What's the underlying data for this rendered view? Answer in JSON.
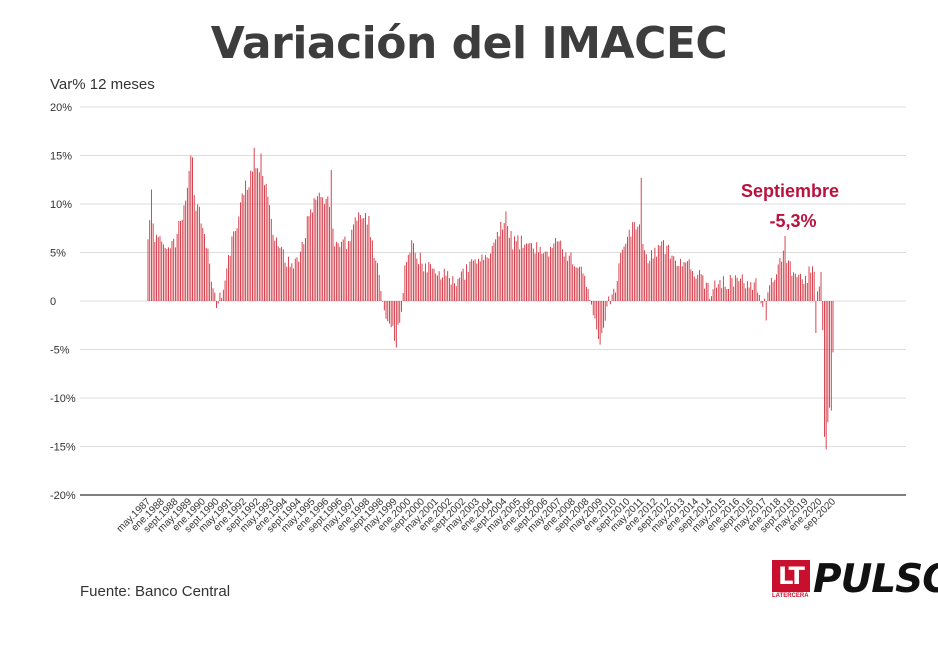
{
  "title": "Variación del IMACEC",
  "source": "Fuente: Banco Central",
  "logo": {
    "lt": "LT",
    "lt_sub": "LATERCERA",
    "pulso": "PULSO"
  },
  "colors": {
    "bar": "#d2303e",
    "annotation": "#b8123f",
    "grid": "#dddddd",
    "axis": "#555555"
  },
  "chart_data": {
    "type": "bar",
    "ylabel": "Var% 12 meses",
    "ylim": [
      -20,
      20
    ],
    "yticks": [
      20,
      15,
      10,
      5,
      0,
      -5,
      -10,
      -15,
      -20
    ],
    "ytick_labels": [
      "20%",
      "15%",
      "10%",
      "5%",
      "0",
      "-5%",
      "-10%",
      "-15%",
      "-20%"
    ],
    "grid": true,
    "x_start": "1987-05",
    "x_end": "2020-09",
    "xtick_labels": [
      "may.1987",
      "ene.1988",
      "sept.1988",
      "may.1989",
      "ene.1990",
      "sept.1990",
      "may.1991",
      "ene.1992",
      "sept.1992",
      "may.1993",
      "ene.1994",
      "sept.1994",
      "may.1995",
      "ene.1996",
      "sept.1996",
      "may.1997",
      "ene.1998",
      "sept.1998",
      "may.1999",
      "ene.2000",
      "sept.2000",
      "may.2001",
      "ene.2002",
      "sept.2002",
      "may.2003",
      "ene.2004",
      "sept.2004",
      "may.2005",
      "ene.2006",
      "sept.2006",
      "may.2007",
      "ene.2008",
      "sept.2008",
      "may.2009",
      "ene.2010",
      "sept.2010",
      "may.2011",
      "ene.2012",
      "sept.2012",
      "may.2013",
      "ene.2014",
      "sept.2014",
      "may.2015",
      "ene.2016",
      "sept.2016",
      "may.2017",
      "ene.2018",
      "sept.2018",
      "may.2019",
      "ene.2020",
      "sep.2020"
    ],
    "anchors": [
      [
        "1987-05",
        7
      ],
      [
        "1987-07",
        11
      ],
      [
        "1987-09",
        6
      ],
      [
        "1988-01",
        6.5
      ],
      [
        "1988-05",
        5
      ],
      [
        "1988-09",
        6
      ],
      [
        "1989-01",
        9
      ],
      [
        "1989-03",
        11
      ],
      [
        "1989-06",
        14
      ],
      [
        "1989-09",
        10
      ],
      [
        "1990-01",
        8
      ],
      [
        "1990-04",
        5
      ],
      [
        "1990-07",
        1
      ],
      [
        "1990-09",
        -0.5
      ],
      [
        "1991-01",
        1.5
      ],
      [
        "1991-06",
        6
      ],
      [
        "1991-10",
        9
      ],
      [
        "1992-02",
        12
      ],
      [
        "1992-06",
        13
      ],
      [
        "1992-10",
        14
      ],
      [
        "1993-02",
        12
      ],
      [
        "1993-06",
        7
      ],
      [
        "1993-10",
        6
      ],
      [
        "1994-01",
        4
      ],
      [
        "1994-06",
        4
      ],
      [
        "1994-10",
        5
      ],
      [
        "1995-02",
        8
      ],
      [
        "1995-06",
        10
      ],
      [
        "1995-10",
        11
      ],
      [
        "1996-02",
        10
      ],
      [
        "1996-06",
        6
      ],
      [
        "1996-10",
        6
      ],
      [
        "1997-02",
        6
      ],
      [
        "1997-06",
        8
      ],
      [
        "1997-10",
        9
      ],
      [
        "1998-02",
        8
      ],
      [
        "1998-05",
        5
      ],
      [
        "1998-08",
        3
      ],
      [
        "1998-11",
        -1
      ],
      [
        "1999-02",
        -3
      ],
      [
        "1999-05",
        -3.5
      ],
      [
        "1999-08",
        -2
      ],
      [
        "1999-11",
        3
      ],
      [
        "2000-03",
        6
      ],
      [
        "2000-07",
        4.5
      ],
      [
        "2000-11",
        3.5
      ],
      [
        "2001-06",
        3
      ],
      [
        "2002-01",
        2.5
      ],
      [
        "2002-06",
        2
      ],
      [
        "2002-11",
        3
      ],
      [
        "2003-04",
        4
      ],
      [
        "2003-09",
        4
      ],
      [
        "2004-02",
        5
      ],
      [
        "2004-06",
        7
      ],
      [
        "2004-10",
        8.5
      ],
      [
        "2005-02",
        6
      ],
      [
        "2005-06",
        6
      ],
      [
        "2005-10",
        6
      ],
      [
        "2006-03",
        5.5
      ],
      [
        "2006-09",
        5
      ],
      [
        "2007-03",
        6
      ],
      [
        "2007-09",
        5
      ],
      [
        "2008-03",
        4
      ],
      [
        "2008-07",
        3.5
      ],
      [
        "2008-10",
        1
      ],
      [
        "2009-01",
        -1.5
      ],
      [
        "2009-04",
        -3.5
      ],
      [
        "2009-07",
        -3
      ],
      [
        "2009-10",
        0
      ],
      [
        "2010-02",
        1.5
      ],
      [
        "2010-06",
        6
      ],
      [
        "2010-10",
        7
      ],
      [
        "2011-02",
        8
      ],
      [
        "2011-05",
        7
      ],
      [
        "2011-09",
        4
      ],
      [
        "2012-01",
        5
      ],
      [
        "2012-06",
        5.5
      ],
      [
        "2012-11",
        5
      ],
      [
        "2013-04",
        4
      ],
      [
        "2013-10",
        3.5
      ],
      [
        "2014-03",
        2.5
      ],
      [
        "2014-09",
        1
      ],
      [
        "2015-03",
        2
      ],
      [
        "2015-09",
        2
      ],
      [
        "2016-03",
        2
      ],
      [
        "2016-09",
        2
      ],
      [
        "2017-01",
        1.5
      ],
      [
        "2017-04",
        0
      ],
      [
        "2017-08",
        2
      ],
      [
        "2017-12",
        3
      ],
      [
        "2018-03",
        4.5
      ],
      [
        "2018-06",
        4.5
      ],
      [
        "2018-10",
        3
      ],
      [
        "2019-03",
        2
      ],
      [
        "2019-08",
        3
      ],
      [
        "2019-10",
        3
      ],
      [
        "2019-11",
        -3.3
      ],
      [
        "2019-12",
        1
      ],
      [
        "2020-01",
        1.5
      ],
      [
        "2020-02",
        3
      ],
      [
        "2020-03",
        -3
      ],
      [
        "2020-04",
        -14
      ],
      [
        "2020-05",
        -15.3
      ],
      [
        "2020-06",
        -12.5
      ],
      [
        "2020-07",
        -11
      ],
      [
        "2020-08",
        -11.3
      ],
      [
        "2020-09",
        -5.3
      ]
    ],
    "spikes": [
      [
        "1987-07",
        11.5
      ],
      [
        "1989-06",
        15
      ],
      [
        "1989-07",
        14.8
      ],
      [
        "1992-07",
        15.8
      ],
      [
        "1992-11",
        15.2
      ],
      [
        "1996-04",
        13.5
      ],
      [
        "1999-06",
        -4.8
      ],
      [
        "2009-05",
        -4.5
      ],
      [
        "2011-05",
        12.7
      ],
      [
        "2017-06",
        -2
      ],
      [
        "2018-05",
        6.7
      ],
      [
        "2020-05",
        -15.3
      ]
    ],
    "annotations": [
      {
        "label": "Septiembre",
        "value_label": "-5,3%",
        "x": "2020-09",
        "y": -5.3
      }
    ]
  }
}
